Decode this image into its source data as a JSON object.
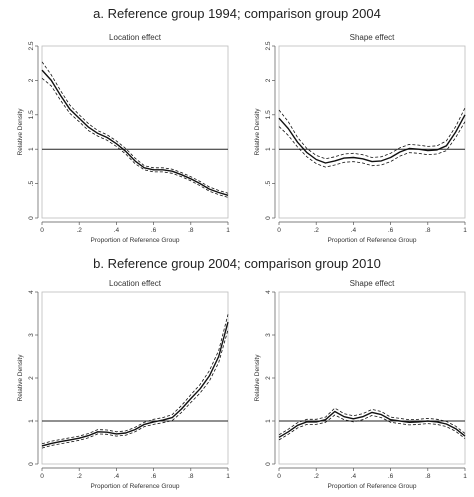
{
  "figure": {
    "panel_a_title": "a. Reference group 1994; comparison group 2004",
    "panel_b_title": "b. Reference group 2004; comparison group 2010"
  },
  "chart_data": [
    {
      "type": "line",
      "panel": "a",
      "title": "Location effect",
      "xlabel": "Proportion of Reference Group",
      "ylabel": "Relative Density",
      "xlim": [
        0,
        1
      ],
      "ylim": [
        0,
        2.5
      ],
      "xticks": [
        0,
        0.2,
        0.4,
        0.6,
        0.8,
        1
      ],
      "xtick_labels": [
        "0",
        ".2",
        ".4",
        ".6",
        ".8",
        "1"
      ],
      "yticks": [
        0,
        0.5,
        1,
        1.5,
        2,
        2.5
      ],
      "ytick_labels": [
        "0",
        ".5",
        "1",
        "1.5",
        "2",
        "2.5"
      ],
      "reference_line": 1,
      "x": [
        0,
        0.05,
        0.1,
        0.15,
        0.2,
        0.25,
        0.3,
        0.35,
        0.4,
        0.45,
        0.5,
        0.55,
        0.6,
        0.65,
        0.7,
        0.75,
        0.8,
        0.85,
        0.9,
        0.95,
        1
      ],
      "series": [
        {
          "role": "estimate",
          "values": [
            2.15,
            2.0,
            1.78,
            1.58,
            1.45,
            1.32,
            1.23,
            1.17,
            1.08,
            0.97,
            0.83,
            0.73,
            0.7,
            0.7,
            0.68,
            0.63,
            0.57,
            0.5,
            0.42,
            0.37,
            0.33
          ]
        },
        {
          "role": "upper",
          "values": [
            2.27,
            2.08,
            1.85,
            1.64,
            1.5,
            1.37,
            1.27,
            1.21,
            1.12,
            1.01,
            0.87,
            0.76,
            0.73,
            0.73,
            0.71,
            0.66,
            0.6,
            0.53,
            0.45,
            0.4,
            0.36
          ]
        },
        {
          "role": "lower",
          "values": [
            2.03,
            1.92,
            1.71,
            1.52,
            1.4,
            1.27,
            1.19,
            1.13,
            1.04,
            0.93,
            0.79,
            0.7,
            0.67,
            0.67,
            0.65,
            0.6,
            0.54,
            0.47,
            0.39,
            0.34,
            0.3
          ]
        }
      ]
    },
    {
      "type": "line",
      "panel": "a",
      "title": "Shape effect",
      "xlabel": "Proportion of Reference Group",
      "ylabel": "Relative Density",
      "xlim": [
        0,
        1
      ],
      "ylim": [
        0,
        2.5
      ],
      "xticks": [
        0,
        0.2,
        0.4,
        0.6,
        0.8,
        1
      ],
      "xtick_labels": [
        "0",
        ".2",
        ".4",
        ".6",
        ".8",
        "1"
      ],
      "yticks": [
        0,
        0.5,
        1,
        1.5,
        2,
        2.5
      ],
      "ytick_labels": [
        "0",
        ".5",
        "1",
        "1.5",
        "2",
        "2.5"
      ],
      "reference_line": 1,
      "x": [
        0,
        0.05,
        0.1,
        0.15,
        0.2,
        0.25,
        0.3,
        0.35,
        0.4,
        0.45,
        0.5,
        0.55,
        0.6,
        0.65,
        0.7,
        0.75,
        0.8,
        0.85,
        0.9,
        0.95,
        1
      ],
      "series": [
        {
          "role": "estimate",
          "values": [
            1.45,
            1.3,
            1.1,
            0.95,
            0.85,
            0.8,
            0.83,
            0.87,
            0.88,
            0.86,
            0.82,
            0.83,
            0.88,
            0.96,
            1.01,
            1.0,
            0.98,
            0.99,
            1.05,
            1.25,
            1.5
          ]
        },
        {
          "role": "upper",
          "values": [
            1.57,
            1.4,
            1.17,
            1.01,
            0.91,
            0.86,
            0.89,
            0.93,
            0.94,
            0.92,
            0.88,
            0.89,
            0.94,
            1.02,
            1.07,
            1.06,
            1.04,
            1.05,
            1.12,
            1.33,
            1.6
          ]
        },
        {
          "role": "lower",
          "values": [
            1.33,
            1.2,
            1.03,
            0.89,
            0.79,
            0.74,
            0.77,
            0.81,
            0.82,
            0.8,
            0.76,
            0.77,
            0.82,
            0.9,
            0.95,
            0.94,
            0.92,
            0.93,
            0.98,
            1.17,
            1.4
          ]
        }
      ]
    },
    {
      "type": "line",
      "panel": "b",
      "title": "Location effect",
      "xlabel": "Proportion of Reference Group",
      "ylabel": "Relative Density",
      "xlim": [
        0,
        1
      ],
      "ylim": [
        0,
        4
      ],
      "xticks": [
        0,
        0.2,
        0.4,
        0.6,
        0.8,
        1
      ],
      "xtick_labels": [
        "0",
        ".2",
        ".4",
        ".6",
        ".8",
        "1"
      ],
      "yticks": [
        0,
        1,
        2,
        3,
        4
      ],
      "ytick_labels": [
        "0",
        "1",
        "2",
        "3",
        "4"
      ],
      "reference_line": 1,
      "x": [
        0,
        0.05,
        0.1,
        0.15,
        0.2,
        0.25,
        0.3,
        0.35,
        0.4,
        0.45,
        0.5,
        0.55,
        0.6,
        0.65,
        0.7,
        0.75,
        0.8,
        0.85,
        0.9,
        0.95,
        1
      ],
      "series": [
        {
          "role": "estimate",
          "values": [
            0.42,
            0.48,
            0.52,
            0.56,
            0.6,
            0.66,
            0.75,
            0.74,
            0.7,
            0.72,
            0.8,
            0.92,
            0.98,
            1.02,
            1.08,
            1.28,
            1.52,
            1.75,
            2.05,
            2.5,
            3.3
          ]
        },
        {
          "role": "upper",
          "values": [
            0.47,
            0.53,
            0.57,
            0.61,
            0.65,
            0.71,
            0.8,
            0.79,
            0.75,
            0.77,
            0.85,
            0.97,
            1.04,
            1.08,
            1.15,
            1.36,
            1.61,
            1.85,
            2.17,
            2.64,
            3.48
          ]
        },
        {
          "role": "lower",
          "values": [
            0.37,
            0.43,
            0.47,
            0.51,
            0.55,
            0.61,
            0.7,
            0.69,
            0.65,
            0.67,
            0.75,
            0.87,
            0.92,
            0.96,
            1.01,
            1.2,
            1.43,
            1.65,
            1.93,
            2.36,
            3.12
          ]
        }
      ]
    },
    {
      "type": "line",
      "panel": "b",
      "title": "Shape effect",
      "xlabel": "Proportion of Reference Group",
      "ylabel": "Relative Density",
      "xlim": [
        0,
        1
      ],
      "ylim": [
        0,
        4
      ],
      "xticks": [
        0,
        0.2,
        0.4,
        0.6,
        0.8,
        1
      ],
      "xtick_labels": [
        "0",
        ".2",
        ".4",
        ".6",
        ".8",
        "1"
      ],
      "yticks": [
        0,
        1,
        2,
        3,
        4
      ],
      "ytick_labels": [
        "0",
        "1",
        "2",
        "3",
        "4"
      ],
      "reference_line": 1,
      "x": [
        0,
        0.05,
        0.1,
        0.15,
        0.2,
        0.25,
        0.3,
        0.35,
        0.4,
        0.45,
        0.5,
        0.55,
        0.6,
        0.65,
        0.7,
        0.75,
        0.8,
        0.85,
        0.9,
        0.95,
        1
      ],
      "series": [
        {
          "role": "estimate",
          "values": [
            0.62,
            0.75,
            0.9,
            0.98,
            0.98,
            1.03,
            1.22,
            1.1,
            1.05,
            1.1,
            1.2,
            1.15,
            1.03,
            1.0,
            0.97,
            0.98,
            1.0,
            0.98,
            0.93,
            0.82,
            0.65
          ]
        },
        {
          "role": "upper",
          "values": [
            0.68,
            0.81,
            0.96,
            1.04,
            1.04,
            1.09,
            1.3,
            1.17,
            1.12,
            1.17,
            1.27,
            1.22,
            1.09,
            1.06,
            1.03,
            1.04,
            1.06,
            1.04,
            0.99,
            0.88,
            0.71
          ]
        },
        {
          "role": "lower",
          "values": [
            0.56,
            0.69,
            0.84,
            0.92,
            0.92,
            0.97,
            1.14,
            1.03,
            0.98,
            1.03,
            1.13,
            1.08,
            0.97,
            0.94,
            0.91,
            0.92,
            0.94,
            0.92,
            0.87,
            0.76,
            0.59
          ]
        }
      ]
    }
  ]
}
